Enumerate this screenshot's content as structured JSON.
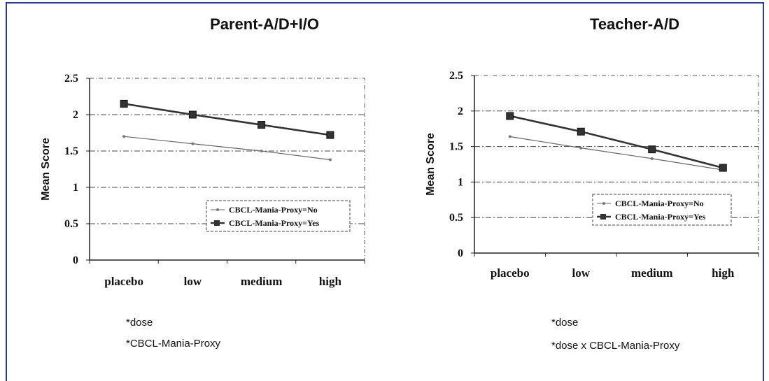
{
  "colors": {
    "frame": "#2b3a8a",
    "series_no": "#666666",
    "series_yes": "#333333"
  },
  "chart_data": [
    {
      "type": "line",
      "title": "Parent-A/D+I/O",
      "ylabel": "Mean Score",
      "xlabel": "",
      "categories": [
        "placebo",
        "low",
        "medium",
        "high"
      ],
      "y_ticks": [
        "0",
        "0.5",
        "1",
        "1.5",
        "2",
        "2.5"
      ],
      "ylim": [
        0,
        2.5
      ],
      "grid": "dash-dot horizontal at 0.5, 1, 1.5, 2, 2.5",
      "legend_position": "lower-right",
      "series": [
        {
          "name": "CBCL-Mania-Proxy=No",
          "marker": "dot",
          "values": [
            1.7,
            1.6,
            1.5,
            1.38
          ]
        },
        {
          "name": "CBCL-Mania-Proxy=Yes",
          "marker": "square",
          "values": [
            2.15,
            2.0,
            1.86,
            1.72
          ]
        }
      ],
      "footnotes": [
        "*dose",
        "*CBCL-Mania-Proxy"
      ]
    },
    {
      "type": "line",
      "title": "Teacher-A/D",
      "ylabel": "Mean Score",
      "xlabel": "",
      "categories": [
        "placebo",
        "low",
        "medium",
        "high"
      ],
      "y_ticks": [
        "0",
        "0.5",
        "1",
        "1.5",
        "2",
        "2.5"
      ],
      "ylim": [
        0,
        2.5
      ],
      "grid": "dash-dot horizontal at 0.5, 1, 1.5, 2, 2.5",
      "legend_position": "lower-right",
      "series": [
        {
          "name": "CBCL-Mania-Proxy=No",
          "marker": "dot",
          "values": [
            1.64,
            1.48,
            1.33,
            1.17
          ]
        },
        {
          "name": "CBCL-Mania-Proxy=Yes",
          "marker": "square",
          "values": [
            1.93,
            1.71,
            1.46,
            1.2
          ]
        }
      ],
      "footnotes": [
        "*dose",
        "*dose x CBCL-Mania-Proxy"
      ]
    }
  ]
}
